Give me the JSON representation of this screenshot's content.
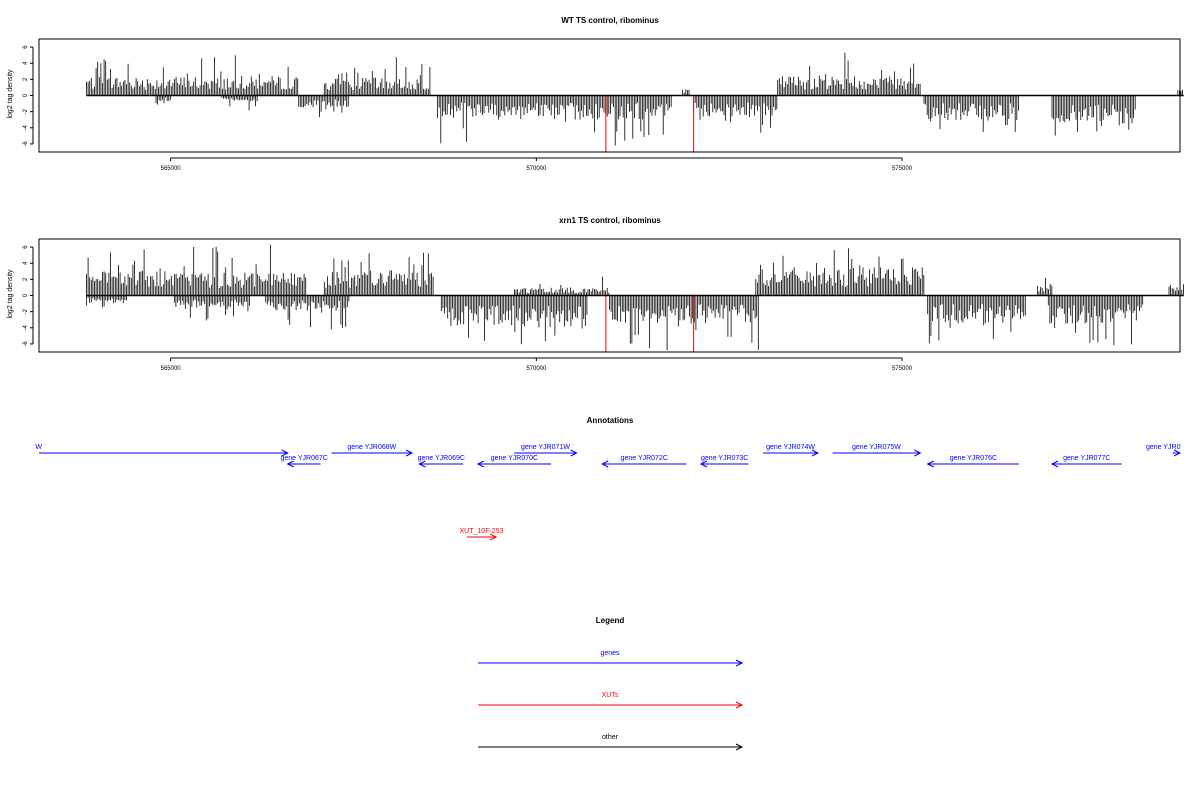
{
  "chart_data": [
    {
      "type": "bar",
      "title": "WT TS control, ribominus",
      "xlabel": "",
      "ylabel": "log2 tag density",
      "xlim": [
        563200,
        578800
      ],
      "ylim": [
        -7,
        7
      ],
      "x_ticks": [
        565000,
        570000,
        575000
      ],
      "x_tick_labels": [
        "565000",
        "570000",
        "575000"
      ],
      "y_ticks": [
        -6,
        -4,
        -2,
        0,
        2,
        4,
        6
      ],
      "y_tick_labels": [
        "-6",
        "-4",
        "-2",
        "0",
        "2",
        "4",
        "6"
      ],
      "series": [
        {
          "strand": "plus",
          "color": "#000000",
          "segments": [
            [
              563850,
              566750,
              2.4,
              5.0
            ],
            [
              567100,
              568550,
              2.2,
              5.2
            ],
            [
              572000,
              572100,
              0.8,
              1.6
            ],
            [
              573300,
              575250,
              2.5,
              5.5
            ],
            [
              578770,
              578850,
              0.8,
              1.1
            ]
          ]
        },
        {
          "strand": "minus",
          "color": "#000000",
          "segments": [
            [
              564800,
              565000,
              -0.8,
              -1.5
            ],
            [
              565700,
              566200,
              -0.8,
              -2.0
            ],
            [
              566750,
              567450,
              -1.5,
              -3.0
            ],
            [
              568650,
              571850,
              -3.0,
              -6.5
            ],
            [
              572150,
              573300,
              -3.0,
              -5.0
            ],
            [
              575300,
              576600,
              -3.2,
              -4.6
            ],
            [
              577050,
              578200,
              -3.5,
              -5.0
            ]
          ]
        },
        {
          "strand": "marker",
          "color": "#ff0000",
          "x": [
            570950,
            572150
          ],
          "values": [
            -7,
            -7
          ]
        }
      ]
    },
    {
      "type": "bar",
      "title": "xrn1 TS control, ribominus",
      "xlabel": "",
      "ylabel": "log2 tag density",
      "xlim": [
        563200,
        578800
      ],
      "ylim": [
        -7,
        7
      ],
      "x_ticks": [
        565000,
        570000,
        575000
      ],
      "x_tick_labels": [
        "565000",
        "570000",
        "575000"
      ],
      "y_ticks": [
        -6,
        -4,
        -2,
        0,
        2,
        4,
        6
      ],
      "y_tick_labels": [
        "-6",
        "-4",
        "-2",
        "0",
        "2",
        "4",
        "6"
      ],
      "series": [
        {
          "strand": "plus",
          "color": "#000000",
          "segments": [
            [
              563850,
              566850,
              3.0,
              6.3
            ],
            [
              567100,
              568600,
              3.2,
              6.0
            ],
            [
              569700,
              571000,
              1.0,
              2.5
            ],
            [
              573000,
              575300,
              3.5,
              6.0
            ],
            [
              576850,
              577050,
              1.5,
              2.5
            ],
            [
              578650,
              578850,
              1.5,
              2.5
            ]
          ]
        },
        {
          "strand": "minus",
          "color": "#000000",
          "segments": [
            [
              563850,
              564400,
              -1.0,
              -2.5
            ],
            [
              565050,
              566100,
              -1.5,
              -3.8
            ],
            [
              566300,
              567450,
              -2.0,
              -4.2
            ],
            [
              568700,
              570700,
              -4.0,
              -6.3
            ],
            [
              571000,
              573050,
              -3.5,
              -7.0
            ],
            [
              575350,
              576700,
              -3.5,
              -6.0
            ],
            [
              577000,
              578300,
              -3.5,
              -6.3
            ]
          ]
        },
        {
          "strand": "marker",
          "color": "#ff0000",
          "x": [
            570950,
            572150
          ],
          "values": [
            -7,
            -7
          ]
        }
      ]
    }
  ],
  "annotations": {
    "title": "Annotations",
    "features": [
      {
        "label": "W",
        "kind": "gene",
        "strand": "+",
        "start": 563200,
        "end": 566600,
        "row": 0,
        "color": "#0000ff"
      },
      {
        "label": "gene YJR067C",
        "kind": "gene",
        "strand": "-",
        "start": 566600,
        "end": 567050,
        "row": 1,
        "color": "#0000ff"
      },
      {
        "label": "gene YJR068W",
        "kind": "gene",
        "strand": "+",
        "start": 567200,
        "end": 568300,
        "row": 0,
        "color": "#0000ff"
      },
      {
        "label": "gene YJR069C",
        "kind": "gene",
        "strand": "-",
        "start": 568400,
        "end": 569000,
        "row": 1,
        "color": "#0000ff"
      },
      {
        "label": "gene YJR070C",
        "kind": "gene",
        "strand": "-",
        "start": 569200,
        "end": 570200,
        "row": 1,
        "color": "#0000ff"
      },
      {
        "label": "gene YJR071W",
        "kind": "gene",
        "strand": "+",
        "start": 569700,
        "end": 570550,
        "row": 0,
        "color": "#0000ff"
      },
      {
        "label": "gene YJR072C",
        "kind": "gene",
        "strand": "-",
        "start": 570900,
        "end": 572050,
        "row": 1,
        "color": "#0000ff"
      },
      {
        "label": "gene YJR073C",
        "kind": "gene",
        "strand": "-",
        "start": 572250,
        "end": 572900,
        "row": 1,
        "color": "#0000ff"
      },
      {
        "label": "gene YJR074W",
        "kind": "gene",
        "strand": "+",
        "start": 573100,
        "end": 573850,
        "row": 0,
        "color": "#0000ff"
      },
      {
        "label": "gene YJR075W",
        "kind": "gene",
        "strand": "+",
        "start": 574050,
        "end": 575250,
        "row": 0,
        "color": "#0000ff"
      },
      {
        "label": "gene YJR076C",
        "kind": "gene",
        "strand": "-",
        "start": 575350,
        "end": 576600,
        "row": 1,
        "color": "#0000ff"
      },
      {
        "label": "gene YJR077C",
        "kind": "gene",
        "strand": "-",
        "start": 577050,
        "end": 578000,
        "row": 1,
        "color": "#0000ff"
      },
      {
        "label": "gene YJR0",
        "kind": "gene",
        "strand": "+",
        "start": 578700,
        "end": 578800,
        "row": 0,
        "color": "#0000ff"
      },
      {
        "label": "XUT_10F-253",
        "kind": "xut",
        "strand": "+",
        "start": 569050,
        "end": 569450,
        "row": 2,
        "color": "#ff0000"
      }
    ]
  },
  "legend": {
    "title": "Legend",
    "items": [
      {
        "label": "genes",
        "color": "#0000ff"
      },
      {
        "label": "XUTs",
        "color": "#ff0000"
      },
      {
        "label": "other",
        "color": "#000000"
      }
    ]
  }
}
